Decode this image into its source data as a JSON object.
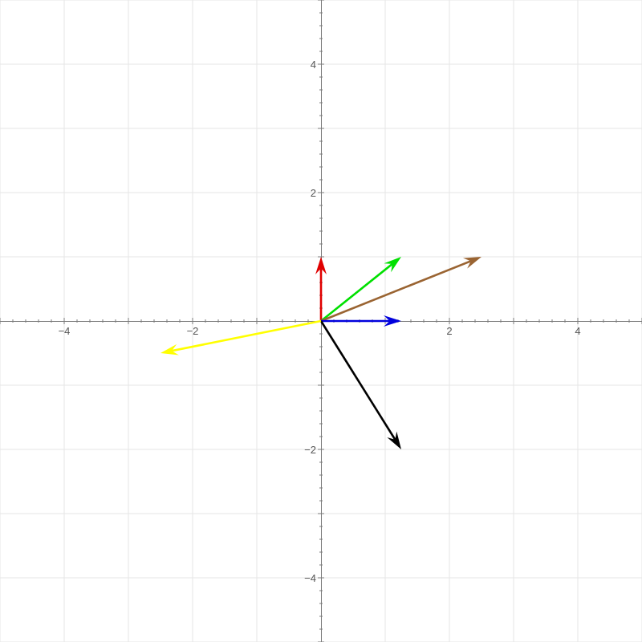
{
  "chart_data": {
    "type": "vector-field",
    "xlim": [
      -5,
      5
    ],
    "ylim": [
      -5,
      5
    ],
    "grid": true,
    "x_ticks": [
      -4,
      -2,
      2,
      4
    ],
    "y_ticks": [
      -4,
      -2,
      2,
      4
    ],
    "x_tick_labels": [
      "−4",
      "−2",
      "2",
      "4"
    ],
    "y_tick_labels": [
      "−4",
      "−2",
      "2",
      "4"
    ],
    "vectors": [
      {
        "name": "",
        "x0": 0,
        "y0": 0,
        "x1": 0,
        "y1": 1,
        "color": "#e00000"
      },
      {
        "name": "",
        "x0": 0,
        "y0": 0,
        "x1": 1.25,
        "y1": 1,
        "color": "#00e000"
      },
      {
        "name": "",
        "x0": 0,
        "y0": 0,
        "x1": 2.5,
        "y1": 1,
        "color": "#9a6432"
      },
      {
        "name": "",
        "x0": 0,
        "y0": 0,
        "x1": 1.25,
        "y1": 0,
        "color": "#0000dd"
      },
      {
        "name": "",
        "x0": 0,
        "y0": 0,
        "x1": 1.25,
        "y1": -2,
        "color": "#000000"
      },
      {
        "name": "",
        "x0": 0,
        "y0": 0,
        "x1": -2.5,
        "y1": -0.5,
        "color": "#ffff00"
      }
    ]
  }
}
